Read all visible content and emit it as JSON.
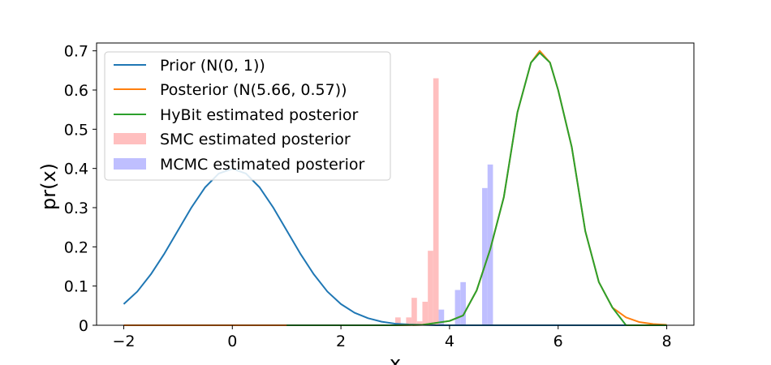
{
  "chart_data": {
    "type": "line",
    "title": "",
    "xlabel": "x",
    "ylabel": "pr(x)",
    "xlim": [
      -2.5,
      8.5
    ],
    "ylim": [
      0,
      0.72
    ],
    "xticks": [
      -2,
      0,
      2,
      4,
      6,
      8
    ],
    "xtick_labels": [
      "−2",
      "0",
      "2",
      "4",
      "6",
      "8"
    ],
    "yticks": [
      0,
      0.1,
      0.2,
      0.3,
      0.4,
      0.5,
      0.6,
      0.7
    ],
    "ytick_labels": [
      "0",
      "0.1",
      "0.2",
      "0.3",
      "0.4",
      "0.5",
      "0.6",
      "0.7"
    ],
    "grid": false,
    "legend_position": "top-left",
    "series": [
      {
        "name": "Prior (N(0, 1))",
        "kind": "line",
        "color": "#1f77b4",
        "x": [
          -2,
          -1.75,
          -1.5,
          -1.25,
          -1,
          -0.75,
          -0.5,
          -0.25,
          0,
          0.25,
          0.5,
          0.75,
          1,
          1.25,
          1.5,
          1.75,
          2,
          2.25,
          2.5,
          2.75,
          3,
          3.25,
          3.5,
          3.75,
          4,
          4.5,
          5,
          6,
          7,
          8
        ],
        "y": [
          0.054,
          0.086,
          0.13,
          0.183,
          0.242,
          0.301,
          0.352,
          0.387,
          0.399,
          0.387,
          0.352,
          0.301,
          0.242,
          0.183,
          0.13,
          0.086,
          0.054,
          0.032,
          0.018,
          0.009,
          0.004,
          0.002,
          0.001,
          0.0,
          0.0,
          0.0,
          0.0,
          0.0,
          0.0,
          0.0
        ]
      },
      {
        "name": "Posterior (N(5.66, 0.57))",
        "kind": "line",
        "color": "#ff7f0e",
        "x": [
          -2,
          1,
          2,
          3,
          3.5,
          4,
          4.25,
          4.5,
          4.75,
          5,
          5.25,
          5.5,
          5.66,
          5.85,
          6,
          6.25,
          6.5,
          6.75,
          7,
          7.25,
          7.5,
          7.75,
          8
        ],
        "y": [
          0.0,
          0.0,
          0.0,
          0.0,
          0.001,
          0.011,
          0.025,
          0.089,
          0.194,
          0.327,
          0.543,
          0.67,
          0.7,
          0.67,
          0.6,
          0.455,
          0.24,
          0.11,
          0.045,
          0.02,
          0.008,
          0.003,
          0.001
        ]
      },
      {
        "name": "HyBit estimated posterior",
        "kind": "line",
        "color": "#2ca02c",
        "x": [
          1,
          2,
          3,
          3.5,
          4,
          4.25,
          4.5,
          4.75,
          5,
          5.25,
          5.5,
          5.66,
          5.85,
          6,
          6.25,
          6.5,
          6.75,
          7,
          7.25,
          8
        ],
        "y": [
          0.0,
          0.0,
          0.0,
          0.001,
          0.011,
          0.025,
          0.089,
          0.194,
          0.327,
          0.543,
          0.67,
          0.695,
          0.67,
          0.6,
          0.455,
          0.24,
          0.11,
          0.045,
          0.0,
          0.0
        ]
      },
      {
        "name": "SMC estimated posterior",
        "kind": "histogram",
        "color": "#ffbfbf",
        "bin_width": 0.1,
        "bin_starts": [
          3.0,
          3.2,
          3.3,
          3.4,
          3.5,
          3.6,
          3.7
        ],
        "values": [
          0.02,
          0.02,
          0.07,
          0.01,
          0.06,
          0.19,
          0.63
        ]
      },
      {
        "name": "MCMC estimated posterior",
        "kind": "histogram",
        "color": "#bfbfff",
        "bin_width": 0.1,
        "bin_starts": [
          3.8,
          4.1,
          4.2,
          4.6,
          4.7
        ],
        "values": [
          0.04,
          0.09,
          0.11,
          0.35,
          0.41
        ]
      }
    ]
  }
}
